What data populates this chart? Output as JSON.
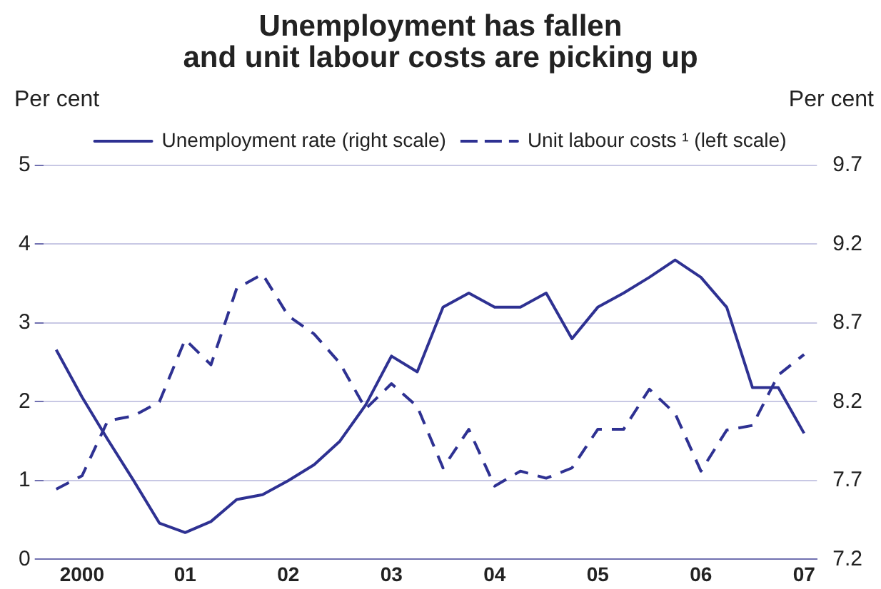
{
  "chart_data": {
    "type": "line",
    "title": "Unemployment has fallen\nand unit labour costs are picking up",
    "ylabel": "Per cent",
    "y2label": "Per cent",
    "categories": [
      null,
      "2000",
      null,
      null,
      null,
      "01",
      null,
      null,
      null,
      "02",
      null,
      null,
      null,
      "03",
      null,
      null,
      null,
      "04",
      null,
      null,
      null,
      "05",
      null,
      null,
      null,
      "06",
      null,
      null,
      null,
      "07"
    ],
    "ylim": [
      0,
      5
    ],
    "yticks": [
      0,
      1,
      2,
      3,
      4,
      5
    ],
    "y2lim": [
      7.2,
      9.7
    ],
    "y2ticks": [
      7.2,
      7.7,
      8.2,
      8.7,
      9.2,
      9.7
    ],
    "grid": "y",
    "legend": "top",
    "marker": "none",
    "series": [
      {
        "name": "Unemployment rate (right scale)",
        "color": "#2e3192",
        "axis": "y2",
        "line_style": "solid",
        "values": [
          8.53,
          8.23,
          7.96,
          7.7,
          7.43,
          7.37,
          7.44,
          7.58,
          7.61,
          7.7,
          7.8,
          7.95,
          8.18,
          8.49,
          8.39,
          8.8,
          8.89,
          8.8,
          8.8,
          8.89,
          8.6,
          8.8,
          8.89,
          8.99,
          9.1,
          8.99,
          8.8,
          8.29,
          8.29,
          8.0
        ]
      },
      {
        "name": "Unit labour costs ¹ (left scale)",
        "color": "#2e3192",
        "axis": "y",
        "line_style": "dashed",
        "values": [
          0.89,
          1.06,
          1.76,
          1.82,
          2.0,
          2.79,
          2.47,
          3.44,
          3.62,
          3.09,
          2.86,
          2.49,
          1.91,
          2.23,
          1.94,
          1.16,
          1.65,
          0.93,
          1.12,
          1.03,
          1.16,
          1.65,
          1.65,
          2.16,
          1.85,
          1.12,
          1.64,
          1.7,
          2.34,
          2.6
        ]
      }
    ]
  }
}
